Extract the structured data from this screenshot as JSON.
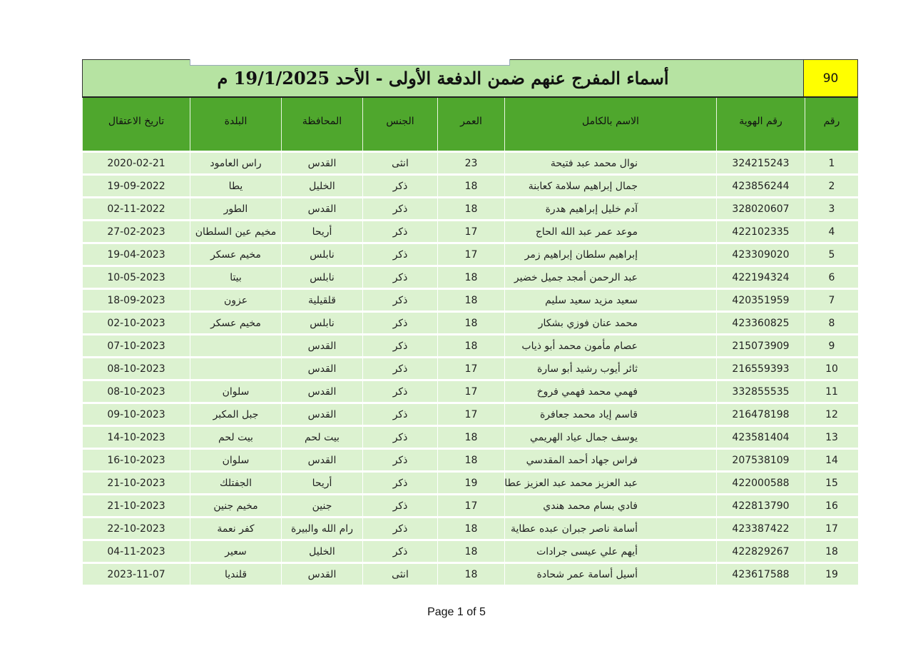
{
  "document": {
    "serial_badge": "90",
    "title": "أسماء المفرج عنهم ضمن الدفعة الأولى - الأحد 19/1/2025 م",
    "footer": "Page 1 of 5",
    "colors": {
      "title_bg": "#b6e3a2",
      "header_bg": "#4fa72d",
      "row_bg": "#dcf2d0",
      "badge_bg": "#ffff00"
    }
  },
  "table": {
    "headers": [
      "رقم",
      "رقم الهوية",
      "الاسم بالكامل",
      "العمر",
      "الجنس",
      "المحافظة",
      "البلدة",
      "تاريخ الاعتقال"
    ],
    "rows": [
      [
        "1",
        "324215243",
        "نوال محمد عبد فتيحة",
        "23",
        "انثى",
        "القدس",
        "راس العامود",
        "2020-02-21"
      ],
      [
        "2",
        "423856244",
        "جمال إبراهيم سلامة كعابنة",
        "18",
        "ذكر",
        "الخليل",
        "يطا",
        "19-09-2022"
      ],
      [
        "3",
        "328020607",
        "آدم خليل إبراهيم هدرة",
        "18",
        "ذكر",
        "القدس",
        "الطور",
        "02-11-2022"
      ],
      [
        "4",
        "422102335",
        "موعد عمر عبد الله الحاج",
        "17",
        "ذكر",
        "أريحا",
        "مخيم عين السلطان",
        "27-02-2023"
      ],
      [
        "5",
        "423309020",
        "إبراهيم سلطان إبراهيم زمر",
        "17",
        "ذكر",
        "نابلس",
        "مخيم عسكر",
        "19-04-2023"
      ],
      [
        "6",
        "422194324",
        "عبد الرحمن أمجد جميل خضير",
        "18",
        "ذكر",
        "نابلس",
        "بيتا",
        "10-05-2023"
      ],
      [
        "7",
        "420351959",
        "سعيد مزيد سعيد سليم",
        "18",
        "ذكر",
        "قلقيلية",
        "عزون",
        "18-09-2023"
      ],
      [
        "8",
        "423360825",
        "محمد عنان فوزي بشكار",
        "18",
        "ذكر",
        "نابلس",
        "مخيم عسكر",
        "02-10-2023"
      ],
      [
        "9",
        "215073909",
        "عصام مأمون محمد أبو ذياب",
        "18",
        "ذكر",
        "القدس",
        "",
        "07-10-2023"
      ],
      [
        "10",
        "216559393",
        "ثائر أيوب رشيد أبو سارة",
        "17",
        "ذكر",
        "القدس",
        "",
        "08-10-2023"
      ],
      [
        "11",
        "332855535",
        "فهمي محمد فهمي فروخ",
        "17",
        "ذكر",
        "القدس",
        "سلوان",
        "08-10-2023"
      ],
      [
        "12",
        "216478198",
        "قاسم إياد محمد جعافرة",
        "17",
        "ذكر",
        "القدس",
        "جبل المكبر",
        "09-10-2023"
      ],
      [
        "13",
        "423581404",
        "يوسف جمال عياد الهريمي",
        "18",
        "ذكر",
        "بيت لحم",
        "بيت لحم",
        "14-10-2023"
      ],
      [
        "14",
        "207538109",
        "فراس جهاد أحمد المقدسي",
        "18",
        "ذكر",
        "القدس",
        "سلوان",
        "16-10-2023"
      ],
      [
        "15",
        "422000588",
        "عبد العزيز محمد عبد العزيز عطاونة",
        "19",
        "ذكر",
        "أريحا",
        "الجفتلك",
        "21-10-2023"
      ],
      [
        "16",
        "422813790",
        "فادي بسام محمد هندي",
        "17",
        "ذكر",
        "جنين",
        "مخيم جنين",
        "21-10-2023"
      ],
      [
        "17",
        "423387422",
        "أسامة ناصر جبران عبده عطاية",
        "18",
        "ذكر",
        "رام الله والبيرة",
        "كفر نعمة",
        "22-10-2023"
      ],
      [
        "18",
        "422829267",
        "أيهم علي عيسى جرادات",
        "18",
        "ذكر",
        "الخليل",
        "سعير",
        "04-11-2023"
      ],
      [
        "19",
        "423617588",
        "أسيل أسامة عمر شحادة",
        "18",
        "انثى",
        "القدس",
        "قلنديا",
        "2023-11-07"
      ]
    ]
  }
}
